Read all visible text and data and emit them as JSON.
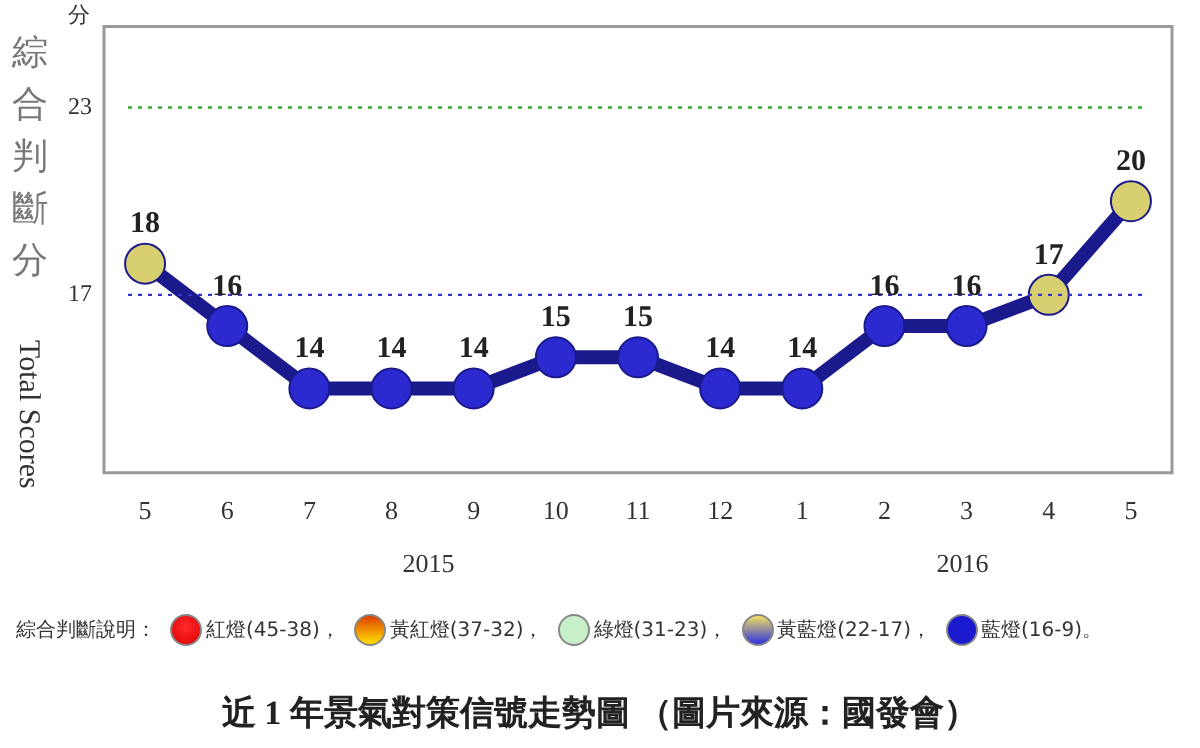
{
  "chart_data": {
    "type": "line",
    "title": "近 1 年景氣對策信號走勢圖 （圖片來源：國發會）",
    "ylabel": "綜合判斷分",
    "categories": [
      "5",
      "6",
      "7",
      "8",
      "9",
      "10",
      "11",
      "12",
      "1",
      "2",
      "3",
      "4",
      "5"
    ],
    "series": [
      {
        "color": "#1a1a8c",
        "values": [
          18,
          16,
          14,
          14,
          14,
          15,
          15,
          14,
          14,
          16,
          16,
          17,
          20
        ],
        "colors": [
          "#d8d070",
          "#2a2ad0",
          "#2a2ad0",
          "#2a2ad0",
          "#2a2ad0",
          "#2a2ad0",
          "#2a2ad0",
          "#2a2ad0",
          "#2a2ad0",
          "#2a2ad0",
          "#2a2ad0",
          "#d8d070",
          "#d8d070"
        ]
      }
    ],
    "ylim": [
      11.3,
      25.6
    ],
    "yticks": [
      17,
      23
    ],
    "grid": false,
    "legend": false,
    "marker": "circle",
    "line_style": "solid",
    "data_labels": true,
    "ref_lines": [
      {
        "axis": "y",
        "value": 23,
        "color": "#33aa33",
        "line_style": "dotted"
      },
      {
        "axis": "y",
        "value": 17,
        "color": "#3333cc",
        "line_style": "dotted"
      }
    ],
    "annotations": [
      "2015",
      "2016",
      "分",
      "Total Scores",
      "綜合判斷說明：",
      "紅燈(45-38)，",
      "黃紅燈(37-32)，",
      "綠燈(31-23)，",
      "黃藍燈(22-17)，",
      "藍燈(16-9)。"
    ]
  }
}
